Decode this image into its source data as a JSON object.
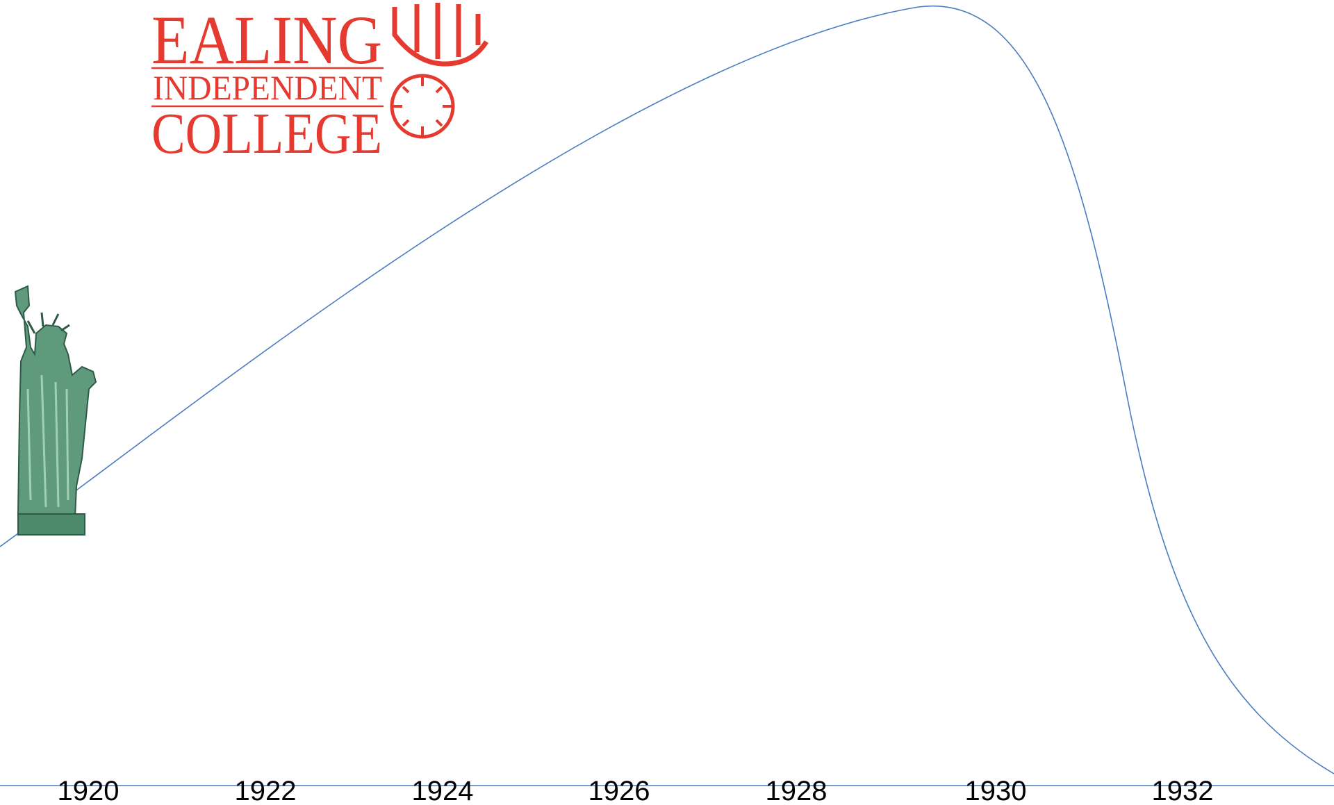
{
  "logo": {
    "line1": "EALING",
    "line2": "INDEPENDENT",
    "line3": "COLLEGE"
  },
  "timeline": {
    "years": [
      "1920",
      "1922",
      "1924",
      "1926",
      "1928",
      "1930",
      "1932"
    ]
  }
}
